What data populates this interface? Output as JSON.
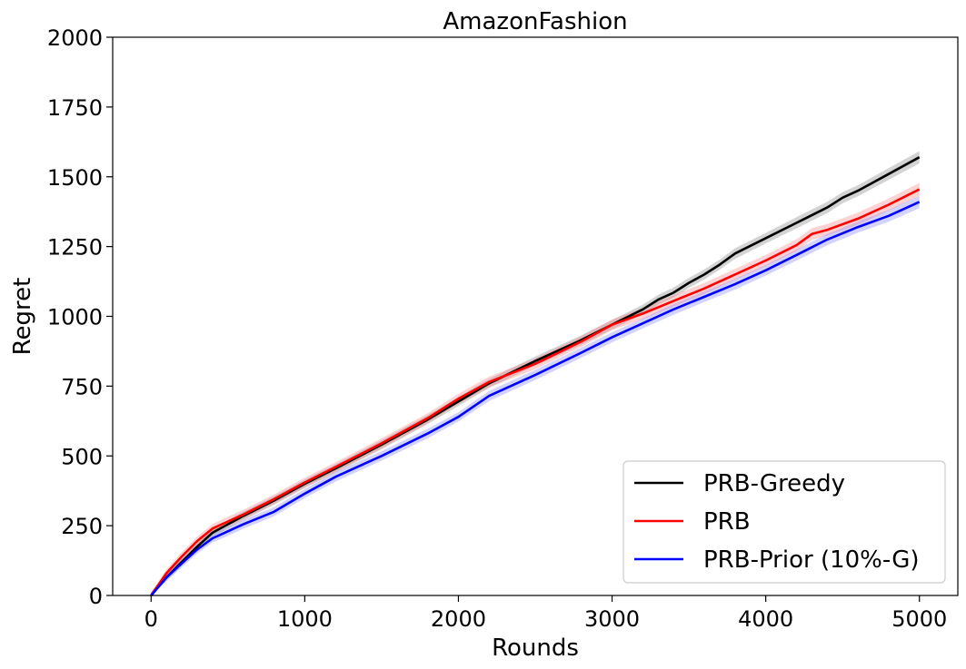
{
  "chart_data": {
    "type": "line",
    "title": "AmazonFashion",
    "xlabel": "Rounds",
    "ylabel": "Regret",
    "xlim": [
      -250,
      5250
    ],
    "ylim": [
      0,
      2000
    ],
    "xticks": [
      0,
      1000,
      2000,
      3000,
      4000,
      5000
    ],
    "xtick_labels": [
      "0",
      "1000",
      "2000",
      "3000",
      "4000",
      "5000"
    ],
    "yticks": [
      0,
      250,
      500,
      750,
      1000,
      1250,
      1500,
      1750,
      2000
    ],
    "ytick_labels": [
      "0",
      "250",
      "500",
      "750",
      "1000",
      "1250",
      "1500",
      "1750",
      "2000"
    ],
    "grid": false,
    "legend_position": "bottom-right",
    "series": [
      {
        "name": "PRB-Greedy",
        "color": "#000000",
        "band_color": "#808080",
        "x": [
          0,
          100,
          200,
          300,
          400,
          500,
          600,
          800,
          1000,
          1200,
          1500,
          1800,
          2000,
          2200,
          2500,
          2800,
          3000,
          3200,
          3300,
          3400,
          3500,
          3600,
          3700,
          3800,
          4000,
          4200,
          4400,
          4500,
          4600,
          4800,
          5000
        ],
        "y": [
          0,
          65,
          120,
          175,
          225,
          255,
          285,
          340,
          400,
          455,
          540,
          630,
          695,
          760,
          840,
          915,
          970,
          1025,
          1060,
          1085,
          1120,
          1150,
          1185,
          1225,
          1280,
          1335,
          1390,
          1425,
          1450,
          1510,
          1570
        ],
        "band": [
          12,
          12,
          13,
          14,
          14,
          14,
          15,
          15,
          15,
          15,
          16,
          16,
          16,
          16,
          16,
          17,
          17,
          17,
          17,
          18,
          18,
          18,
          18,
          19,
          19,
          20,
          20,
          20,
          20,
          21,
          22
        ]
      },
      {
        "name": "PRB",
        "color": "#ff0000",
        "band_color": "#ff8080",
        "x": [
          0,
          100,
          200,
          300,
          400,
          500,
          600,
          800,
          1000,
          1200,
          1500,
          1800,
          2000,
          2200,
          2500,
          2800,
          3000,
          3200,
          3400,
          3600,
          3800,
          4000,
          4200,
          4300,
          4400,
          4600,
          4800,
          5000
        ],
        "y": [
          0,
          80,
          140,
          195,
          240,
          265,
          290,
          345,
          405,
          460,
          545,
          635,
          705,
          765,
          830,
          910,
          970,
          1010,
          1055,
          1100,
          1150,
          1200,
          1255,
          1295,
          1310,
          1350,
          1400,
          1455
        ],
        "band": [
          12,
          14,
          15,
          16,
          16,
          17,
          17,
          17,
          17,
          17,
          18,
          18,
          18,
          19,
          19,
          19,
          19,
          20,
          20,
          20,
          20,
          20,
          21,
          21,
          21,
          22,
          22,
          23
        ]
      },
      {
        "name": "PRB-Prior (10%-G)",
        "color": "#0000ff",
        "band_color": "#8080ff",
        "x": [
          0,
          100,
          200,
          300,
          400,
          500,
          600,
          800,
          1000,
          1200,
          1500,
          1800,
          2000,
          2200,
          2500,
          2800,
          3000,
          3200,
          3400,
          3600,
          3800,
          4000,
          4200,
          4400,
          4600,
          4800,
          5000
        ],
        "y": [
          0,
          65,
          115,
          165,
          205,
          230,
          255,
          300,
          365,
          425,
          500,
          580,
          640,
          715,
          790,
          870,
          925,
          975,
          1025,
          1070,
          1115,
          1165,
          1220,
          1275,
          1320,
          1360,
          1410
        ],
        "band": [
          12,
          13,
          14,
          15,
          15,
          16,
          16,
          16,
          16,
          17,
          17,
          17,
          17,
          18,
          18,
          18,
          18,
          18,
          19,
          19,
          19,
          19,
          20,
          20,
          20,
          21,
          22
        ]
      }
    ]
  }
}
